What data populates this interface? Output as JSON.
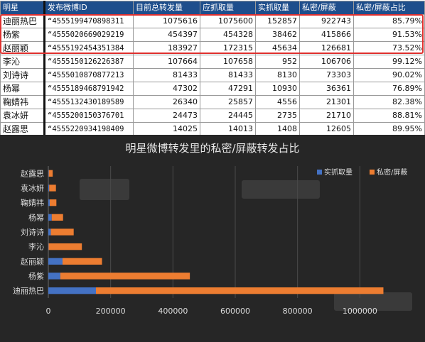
{
  "table": {
    "headers": [
      "明星",
      "发布微博ID",
      "目前总转发量",
      "应抓取量",
      "实抓取量",
      "私密/屏蔽",
      "私密/屏蔽占比"
    ],
    "rows": [
      [
        "迪丽热巴",
        "“4555199470898311",
        "1075616",
        "1075600",
        "152857",
        "922743",
        "85.79%"
      ],
      [
        "杨紫",
        "“4555020669029219",
        "454397",
        "454328",
        "38462",
        "415866",
        "91.53%"
      ],
      [
        "赵丽颖",
        "“4555192454351384",
        "183927",
        "172315",
        "45634",
        "126681",
        "73.52%"
      ],
      [
        "李沁",
        "“4555150126226387",
        "107664",
        "107658",
        "952",
        "106706",
        "99.12%"
      ],
      [
        "刘诗诗",
        "“4555010870877213",
        "81433",
        "81433",
        "8130",
        "73303",
        "90.02%"
      ],
      [
        "杨幂",
        "“4555189468791942",
        "47302",
        "47291",
        "10930",
        "36361",
        "76.89%"
      ],
      [
        "鞠婧祎",
        "“4555132430189589",
        "26340",
        "25857",
        "4556",
        "21301",
        "82.38%"
      ],
      [
        "袁冰妍",
        "“4555200150376701",
        "24473",
        "24445",
        "2735",
        "21710",
        "88.81%"
      ],
      [
        "赵露思",
        "“4555220934198409",
        "14025",
        "14013",
        "1408",
        "12605",
        "89.95%"
      ]
    ]
  },
  "chart_data": {
    "type": "bar",
    "orientation": "horizontal",
    "stacked": true,
    "title": "明星微博转发里的私密/屏蔽转发占比",
    "categories": [
      "迪丽热巴",
      "杨紫",
      "赵丽颖",
      "李沁",
      "刘诗诗",
      "杨幂",
      "鞠婧祎",
      "袁冰妍",
      "赵露思"
    ],
    "series": [
      {
        "name": "实抓取量",
        "color": "#4472c4",
        "values": [
          152857,
          38462,
          45634,
          952,
          8130,
          10930,
          4556,
          2735,
          1408
        ]
      },
      {
        "name": "私密/屏蔽",
        "color": "#ed7d31",
        "values": [
          922743,
          415866,
          126681,
          106706,
          73303,
          36361,
          21301,
          21710,
          12605
        ]
      }
    ],
    "xlim": [
      0,
      1200000
    ],
    "xticks": [
      "0",
      "200000",
      "400000",
      "600000",
      "800000",
      "1000000"
    ],
    "xtick_values": [
      0,
      200000,
      400000,
      600000,
      800000,
      1000000
    ],
    "legend_position": "top-right",
    "grid": "vertical"
  }
}
